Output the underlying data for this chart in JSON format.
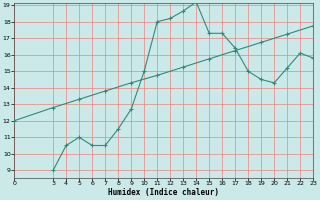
{
  "xlabel": "Humidex (Indice chaleur)",
  "background_color": "#cce9e9",
  "grid_color": "#f08080",
  "line_color": "#2e8b7a",
  "marker": "+",
  "xlim": [
    0,
    23
  ],
  "ylim": [
    9,
    19
  ],
  "xticks": [
    0,
    3,
    4,
    5,
    6,
    7,
    8,
    9,
    10,
    11,
    12,
    13,
    14,
    15,
    16,
    17,
    18,
    19,
    20,
    21,
    22,
    23
  ],
  "yticks": [
    9,
    10,
    11,
    12,
    13,
    14,
    15,
    16,
    17,
    18,
    19
  ],
  "line1_x": [
    3,
    4,
    5,
    6,
    7,
    8,
    9,
    10,
    11,
    12,
    13,
    14,
    15,
    16,
    17,
    18,
    19,
    20,
    21,
    22,
    23
  ],
  "line1_y": [
    9.0,
    10.5,
    11.0,
    10.5,
    10.5,
    11.5,
    12.7,
    15.0,
    18.0,
    18.2,
    18.65,
    19.2,
    17.3,
    17.3,
    16.4,
    15.0,
    14.5,
    14.3,
    15.2,
    16.1,
    15.8
  ],
  "line2_x": [
    0,
    3,
    5,
    7,
    9,
    11,
    13,
    15,
    17,
    19,
    21,
    23
  ],
  "line2_y": [
    12.0,
    12.8,
    13.3,
    13.8,
    14.3,
    14.75,
    15.25,
    15.75,
    16.25,
    16.75,
    17.25,
    17.75
  ]
}
